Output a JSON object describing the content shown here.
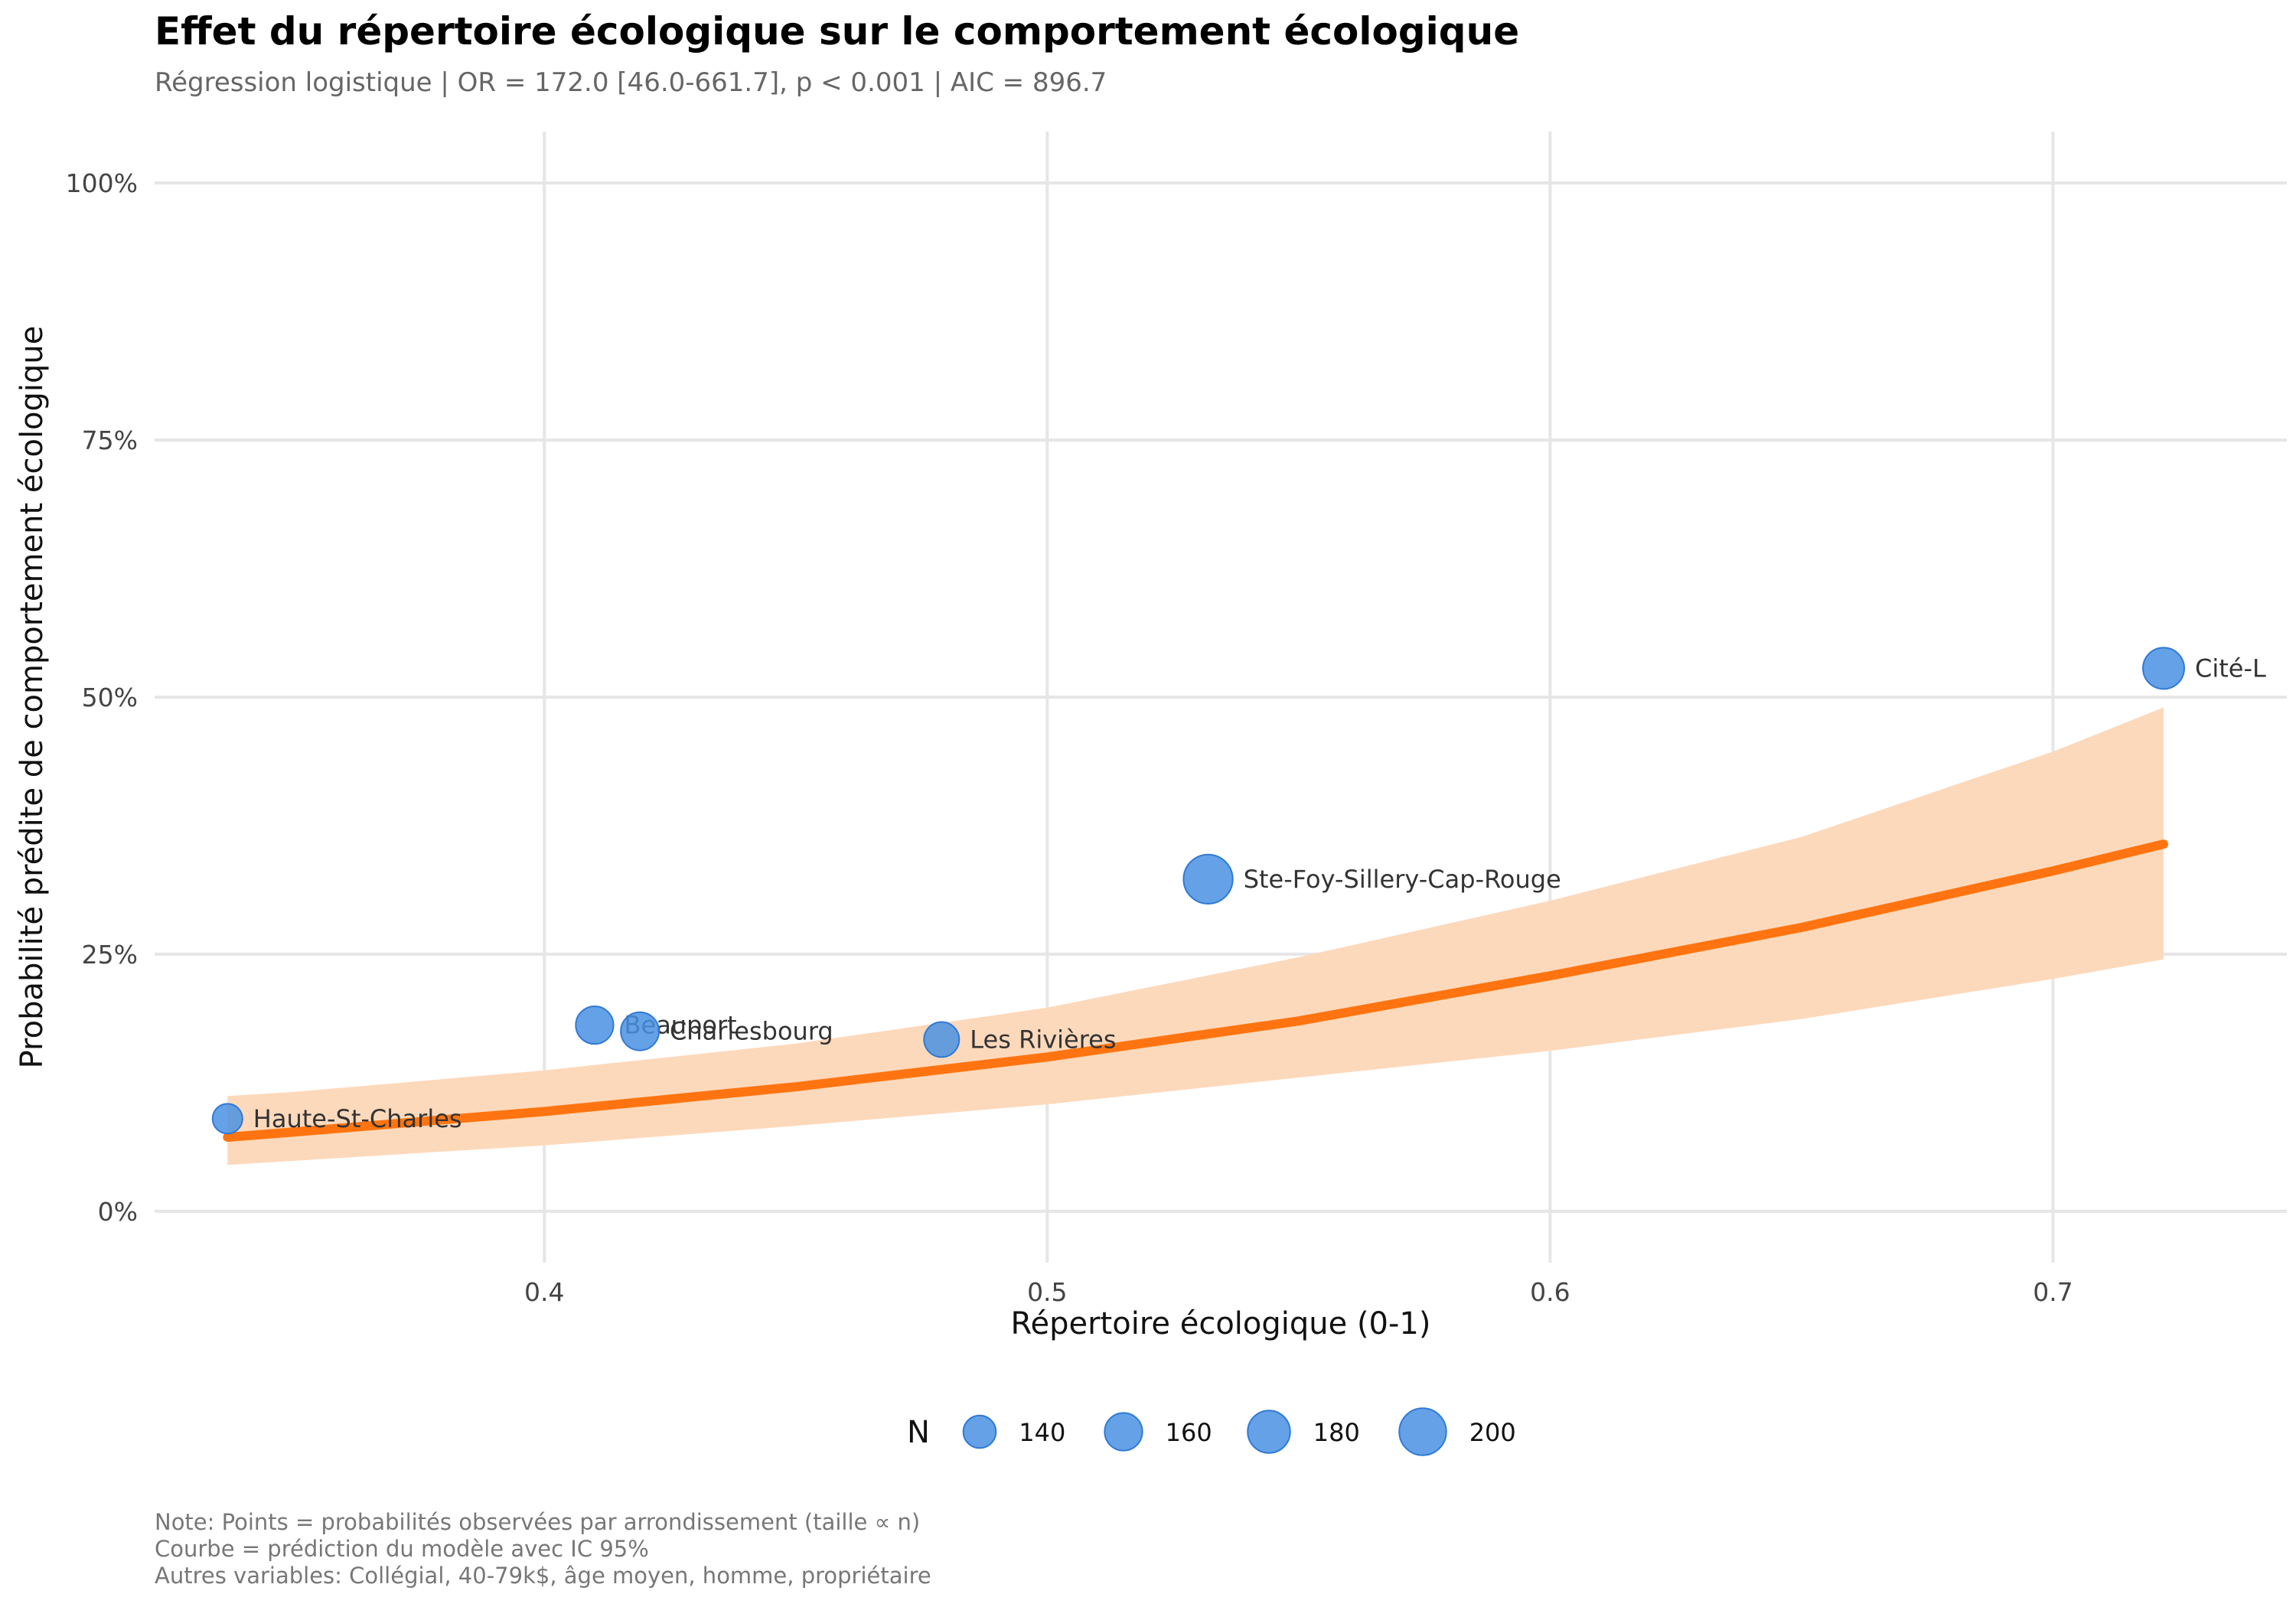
{
  "chart_data": {
    "type": "scatter",
    "title": "Effet du répertoire écologique sur le comportement écologique",
    "subtitle": "Régression logistique | OR = 172.0 [46.0-661.7], p < 0.001 | AIC = 896.7",
    "xlabel": "Répertoire écologique (0-1)",
    "ylabel": "Probabilité prédite de comportement écologique",
    "xlim": [
      0.3225,
      0.7465
    ],
    "ylim": [
      -0.05,
      1.05
    ],
    "x_ticks": [
      {
        "value": 0.4,
        "label": "0.4"
      },
      {
        "value": 0.5,
        "label": "0.5"
      },
      {
        "value": 0.6,
        "label": "0.6"
      },
      {
        "value": 0.7,
        "label": "0.7"
      }
    ],
    "y_ticks": [
      {
        "value": 0,
        "label": "0%"
      },
      {
        "value": 0.25,
        "label": "25%"
      },
      {
        "value": 0.5,
        "label": "50%"
      },
      {
        "value": 0.75,
        "label": "75%"
      },
      {
        "value": 1,
        "label": "100%"
      }
    ],
    "grid": true,
    "points": [
      {
        "label": "Haute-St-Charles",
        "x": 0.337,
        "y": 0.09,
        "n": 130
      },
      {
        "label": "Beauport",
        "x": 0.41,
        "y": 0.181,
        "n": 160
      },
      {
        "label": "Charlesbourg",
        "x": 0.419,
        "y": 0.175,
        "n": 162
      },
      {
        "label": "Les Rivières",
        "x": 0.479,
        "y": 0.167,
        "n": 150
      },
      {
        "label": "Ste-Foy-Sillery-Cap-Rouge",
        "x": 0.532,
        "y": 0.323,
        "n": 210
      },
      {
        "label": "Cité-L",
        "x": 0.722,
        "y": 0.528,
        "n": 175
      }
    ],
    "curve": {
      "name": "prédiction du modèle",
      "x": [
        0.337,
        0.35,
        0.4,
        0.45,
        0.5,
        0.55,
        0.6,
        0.65,
        0.7,
        0.722
      ],
      "y": [
        0.072,
        0.077,
        0.097,
        0.121,
        0.15,
        0.185,
        0.229,
        0.276,
        0.331,
        0.357
      ],
      "ci_lower": [
        0.045,
        0.049,
        0.064,
        0.083,
        0.104,
        0.13,
        0.156,
        0.187,
        0.226,
        0.245
      ],
      "ci_upper": [
        0.112,
        0.116,
        0.137,
        0.163,
        0.198,
        0.247,
        0.302,
        0.364,
        0.447,
        0.49
      ]
    },
    "legend": {
      "position": "bottom",
      "title": "N",
      "entries": [
        {
          "label": "140",
          "n": 140
        },
        {
          "label": "160",
          "n": 160
        },
        {
          "label": "180",
          "n": 180
        },
        {
          "label": "200",
          "n": 200
        }
      ]
    },
    "colors": {
      "points": "#4a90e2",
      "curve": "#ff7410",
      "ribbon": "#fdd9bb",
      "grid": "#e6e6e6"
    },
    "notes": [
      "Note: Points = probabilités observées par arrondissement (taille ∝ n)",
      "Courbe = prédiction du modèle avec IC 95%",
      "Autres variables: Collégial, 40-79k$, âge moyen, homme, propriétaire"
    ]
  }
}
